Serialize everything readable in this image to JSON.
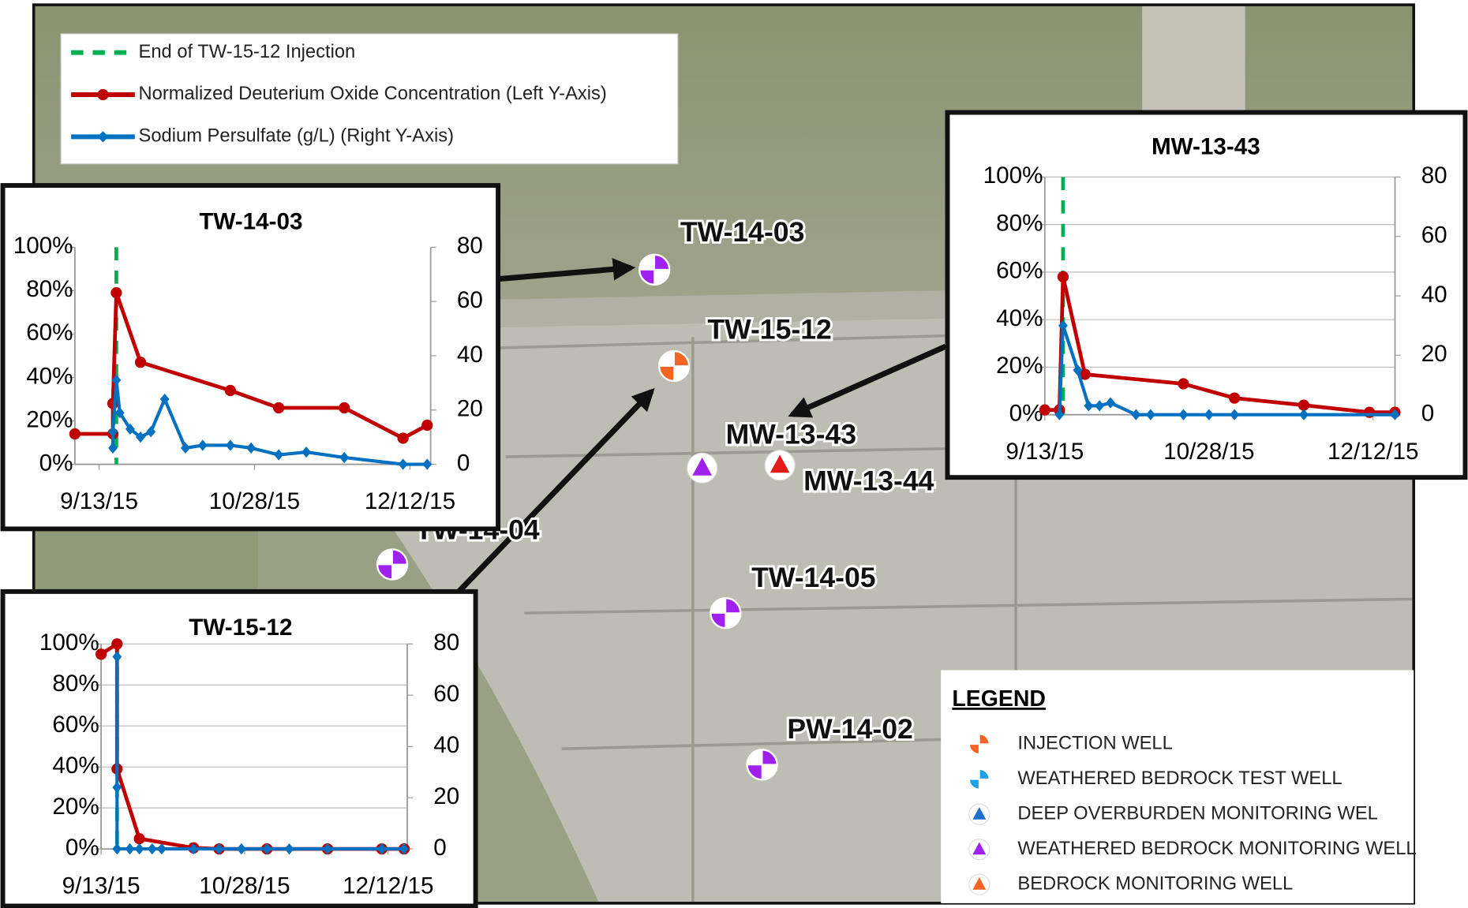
{
  "chart_data": [
    {
      "type": "line",
      "title": "TW-14-03",
      "xlim": [
        "2015-09-06",
        "2015-12-18"
      ],
      "xticks": [
        {
          "value": "2015-09-13",
          "label": "9/13/15"
        },
        {
          "value": "2015-10-28",
          "label": "10/28/15"
        },
        {
          "value": "2015-12-12",
          "label": "12/12/15"
        }
      ],
      "ylim": [
        0,
        100
      ],
      "yticks": [
        {
          "value": 0,
          "label": "0%"
        },
        {
          "value": 20,
          "label": "20%"
        },
        {
          "value": 40,
          "label": "40%"
        },
        {
          "value": 60,
          "label": "60%"
        },
        {
          "value": 80,
          "label": "80%"
        },
        {
          "value": 100,
          "label": "100%"
        }
      ],
      "y2lim": [
        0,
        80
      ],
      "y2ticks": [
        0,
        20,
        40,
        60,
        80
      ],
      "grid": false,
      "vlines": [
        {
          "name": "End of TW-15-12 Injection",
          "x": "2015-09-18",
          "color": "#00b050"
        }
      ],
      "series": [
        {
          "name": "Normalized Deuterium Oxide Concentration (Left Y-Axis)",
          "color": "#c00000",
          "marker": "circle",
          "x": [
            "2015-09-06",
            "2015-09-17",
            "2015-09-17",
            "2015-09-18",
            "2015-09-25",
            "2015-10-21",
            "2015-11-04",
            "2015-11-23",
            "2015-12-10",
            "2015-12-17"
          ],
          "values": [
            14,
            14,
            28,
            79,
            47,
            34,
            26,
            26,
            12,
            18
          ]
        },
        {
          "name": "Sodium Persulfate (g/L) (Right Y-Axis)",
          "color": "#0070c0",
          "marker": "diamond",
          "axis": "y2",
          "x": [
            "2015-09-17",
            "2015-09-17",
            "2015-09-18",
            "2015-09-19",
            "2015-09-22",
            "2015-09-25",
            "2015-09-28",
            "2015-10-02",
            "2015-10-08",
            "2015-10-13",
            "2015-10-21",
            "2015-10-27",
            "2015-11-04",
            "2015-11-12",
            "2015-11-23",
            "2015-12-10",
            "2015-12-17"
          ],
          "values": [
            6,
            12,
            31,
            19,
            13,
            10,
            12,
            24,
            6,
            7,
            7,
            6,
            3.5,
            4.5,
            2.5,
            0,
            0
          ]
        }
      ]
    },
    {
      "type": "line",
      "title": "MW-13-43",
      "xlim": [
        "2015-09-13",
        "2015-12-18"
      ],
      "xticks": [
        {
          "value": "2015-09-13",
          "label": "9/13/15"
        },
        {
          "value": "2015-10-28",
          "label": "10/28/15"
        },
        {
          "value": "2015-12-12",
          "label": "12/12/15"
        }
      ],
      "ylim": [
        0,
        100
      ],
      "yticks": [
        {
          "value": 0,
          "label": "0%"
        },
        {
          "value": 20,
          "label": "20%"
        },
        {
          "value": 40,
          "label": "40%"
        },
        {
          "value": 60,
          "label": "60%"
        },
        {
          "value": 80,
          "label": "80%"
        },
        {
          "value": 100,
          "label": "100%"
        }
      ],
      "y2lim": [
        0,
        80
      ],
      "y2ticks": [
        0,
        20,
        40,
        60,
        80
      ],
      "grid": true,
      "vlines": [
        {
          "x": "2015-09-18",
          "color": "#00b050"
        }
      ],
      "series": [
        {
          "color": "#c00000",
          "marker": "circle",
          "x": [
            "2015-09-13",
            "2015-09-17",
            "2015-09-18",
            "2015-09-24",
            "2015-10-21",
            "2015-11-04",
            "2015-11-23",
            "2015-12-11",
            "2015-12-18"
          ],
          "values": [
            2,
            2,
            58,
            17,
            13,
            7,
            4,
            1,
            1
          ]
        },
        {
          "color": "#0070c0",
          "marker": "diamond",
          "axis": "y2",
          "x": [
            "2015-09-17",
            "2015-09-18",
            "2015-09-22",
            "2015-09-25",
            "2015-09-28",
            "2015-10-01",
            "2015-10-08",
            "2015-10-12",
            "2015-10-21",
            "2015-10-28",
            "2015-11-04",
            "2015-11-23",
            "2015-12-18"
          ],
          "values": [
            0,
            30,
            15,
            3,
            3,
            4,
            0,
            0,
            0,
            0,
            0,
            0,
            0
          ]
        }
      ]
    },
    {
      "type": "line",
      "title": "TW-15-12",
      "xlim": [
        "2015-09-13",
        "2015-12-18"
      ],
      "xticks": [
        {
          "value": "2015-09-13",
          "label": "9/13/15"
        },
        {
          "value": "2015-10-28",
          "label": "10/28/15"
        },
        {
          "value": "2015-12-12",
          "label": "12/12/15"
        }
      ],
      "ylim": [
        0,
        100
      ],
      "yticks": [
        {
          "value": 0,
          "label": "0%"
        },
        {
          "value": 20,
          "label": "20%"
        },
        {
          "value": 40,
          "label": "40%"
        },
        {
          "value": 60,
          "label": "60%"
        },
        {
          "value": 80,
          "label": "80%"
        },
        {
          "value": 100,
          "label": "100%"
        }
      ],
      "y2lim": [
        0,
        80
      ],
      "y2ticks": [
        0,
        20,
        40,
        60,
        80
      ],
      "grid": true,
      "vlines": [
        {
          "x": "2015-09-18",
          "color": "#00b050"
        }
      ],
      "series": [
        {
          "color": "#c00000",
          "marker": "circle",
          "x": [
            "2015-09-13",
            "2015-09-18",
            "2015-09-18",
            "2015-09-25",
            "2015-10-12",
            "2015-10-20",
            "2015-11-04",
            "2015-11-23",
            "2015-12-10",
            "2015-12-17"
          ],
          "values": [
            95,
            100,
            39,
            5,
            0.5,
            0,
            0,
            0,
            0,
            0
          ]
        },
        {
          "color": "#0070c0",
          "marker": "diamond",
          "axis": "y2",
          "x": [
            "2015-09-18",
            "2015-09-18",
            "2015-09-18",
            "2015-09-22",
            "2015-09-25",
            "2015-09-29",
            "2015-10-02",
            "2015-10-12",
            "2015-10-20",
            "2015-10-27",
            "2015-11-04",
            "2015-11-11",
            "2015-11-23",
            "2015-12-10",
            "2015-12-17"
          ],
          "values": [
            75,
            24,
            0,
            0,
            0,
            0,
            0,
            0,
            0,
            0,
            0,
            0,
            0,
            0,
            0
          ]
        }
      ]
    }
  ],
  "map": {
    "wells": [
      "TW-14-03",
      "TW-15-12",
      "MW-13-43",
      "MW-13-44",
      "TW-14-04",
      "TW-14-05",
      "PW-14-02"
    ]
  },
  "legend": {
    "title": "LEGEND",
    "items": [
      "INJECTION WELL",
      "WEATHERED BEDROCK TEST WELL",
      "DEEP OVERBURDEN MONITORING WEL",
      "WEATHERED BEDROCK MONITORING WELL",
      "BEDROCK MONITORING WELL"
    ]
  }
}
